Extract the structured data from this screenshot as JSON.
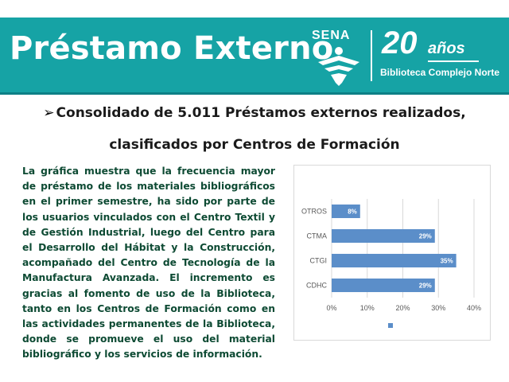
{
  "header": {
    "title": "Préstamo Externo",
    "logo_text": "SENA",
    "anniversary_number": "20",
    "anniversary_word": "años",
    "anniversary_subtitle": "Biblioteca Complejo Norte"
  },
  "subtitle": {
    "line1": "Consolidado de 5.011 Préstamos externos realizados,",
    "line2": "clasificados por Centros de Formación",
    "bullet": "➢"
  },
  "description": "La gráfica muestra que la frecuencia mayor de préstamo de los materiales bibliográficos en el primer semestre, ha sido por parte de los usuarios vinculados con el Centro Textil y de Gestión Industrial, luego del Centro para el Desarrollo del Hábitat y la Construcción, acompañado del Centro de Tecnología de la Manufactura Avanzada. El incremento es gracias al fomento de uso de la Biblioteca, tanto en los Centros de Formación como en las actividades permanentes de la Biblioteca, donde se promueve el uso del material bibliográfico y los servicios de información.",
  "colors": {
    "header_bg": "#16a3a5",
    "bar": "#5b8ec9",
    "text_green": "#0d4a33"
  },
  "chart_data": {
    "type": "bar",
    "orientation": "horizontal",
    "categories": [
      "CDHC",
      "CTGI",
      "CTMA",
      "OTROS"
    ],
    "values": [
      29,
      35,
      29,
      8
    ],
    "data_labels": [
      "29%",
      "35%",
      "29%",
      "8%"
    ],
    "xlim": [
      0,
      40
    ],
    "xticks": [
      "0%",
      "10%",
      "20%",
      "30%",
      "40%"
    ],
    "grid": true,
    "legend": "bottom"
  }
}
